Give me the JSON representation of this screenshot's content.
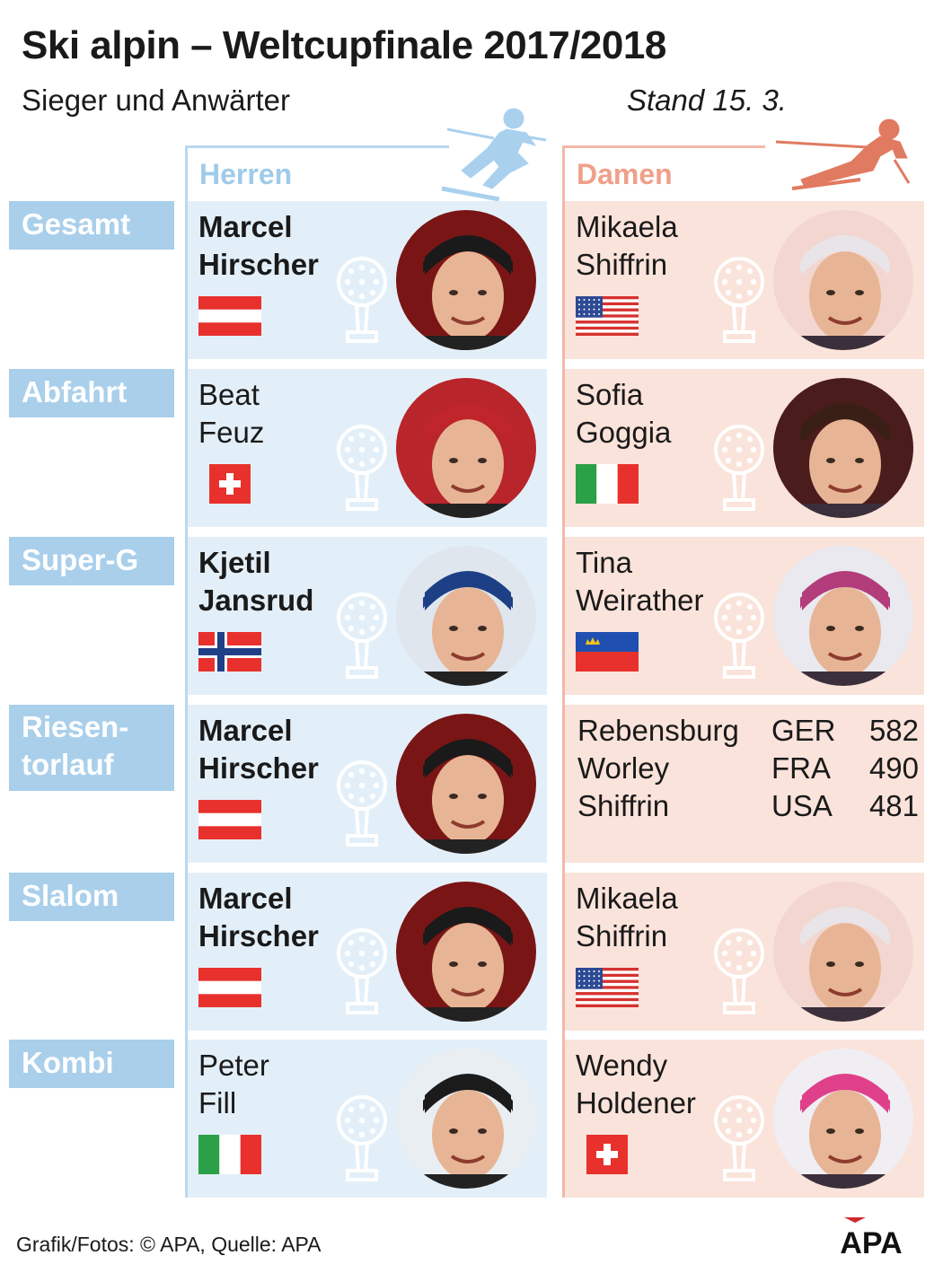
{
  "title": "Ski alpin – Weltcupfinale 2017/2018",
  "subtitle": "Sieger und Anwärter",
  "stand": "Stand 15. 3.",
  "columns": {
    "men": "Herren",
    "women": "Damen"
  },
  "colors": {
    "men_accent": "#9fcbe9",
    "women_accent": "#efa08a",
    "men_bg": "#e3eff8",
    "women_bg": "#fae3da",
    "category_bg": "#a9cfeb"
  },
  "categories": [
    {
      "label_lines": [
        "Gesamt"
      ],
      "men": {
        "first": "Marcel",
        "last": "Hirscher",
        "bold": true,
        "flag": "austria"
      },
      "women": {
        "first": "Mikaela",
        "last": "Shiffrin",
        "bold": false,
        "flag": "usa"
      }
    },
    {
      "label_lines": [
        "Abfahrt"
      ],
      "men": {
        "first": "Beat",
        "last": "Feuz",
        "bold": false,
        "flag": "switzerland"
      },
      "women": {
        "first": "Sofia",
        "last": "Goggia",
        "bold": false,
        "flag": "italy"
      }
    },
    {
      "label_lines": [
        "Super-G"
      ],
      "men": {
        "first": "Kjetil",
        "last": "Jansrud",
        "bold": true,
        "flag": "norway"
      },
      "women": {
        "first": "Tina",
        "last": "Weirather",
        "bold": false,
        "flag": "liechtenstein"
      }
    },
    {
      "label_lines": [
        "Riesen-",
        "torlauf"
      ],
      "men": {
        "first": "Marcel",
        "last": "Hirscher",
        "bold": true,
        "flag": "austria"
      },
      "women_standings": [
        {
          "name": "Rebensburg",
          "country": "GER",
          "points": "582"
        },
        {
          "name": "Worley",
          "country": "FRA",
          "points": "490"
        },
        {
          "name": "Shiffrin",
          "country": "USA",
          "points": "481"
        }
      ]
    },
    {
      "label_lines": [
        "Slalom"
      ],
      "men": {
        "first": "Marcel",
        "last": "Hirscher",
        "bold": true,
        "flag": "austria"
      },
      "women": {
        "first": "Mikaela",
        "last": "Shiffrin",
        "bold": false,
        "flag": "usa"
      }
    },
    {
      "label_lines": [
        "Kombi"
      ],
      "men": {
        "first": "Peter",
        "last": "Fill",
        "bold": false,
        "flag": "italy"
      },
      "women": {
        "first": "Wendy",
        "last": "Holdener",
        "bold": false,
        "flag": "switzerland"
      }
    }
  ],
  "footer": "Grafik/Fotos: © APA, Quelle: APA",
  "logo": "APA"
}
